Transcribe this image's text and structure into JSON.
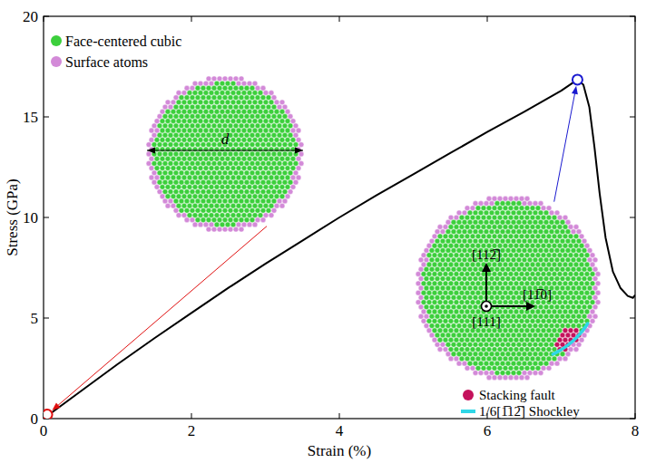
{
  "chart_data": {
    "type": "line",
    "xlabel": "Strain (%)",
    "ylabel": "Stress (GPa)",
    "x": [
      0,
      0.5,
      1,
      1.5,
      2,
      2.5,
      3,
      3.5,
      4,
      4.5,
      5,
      5.5,
      6,
      6.5,
      7,
      7.22,
      7.3,
      7.38,
      7.45,
      7.52,
      7.6,
      7.7,
      7.8,
      7.9,
      7.97,
      8
    ],
    "series": [
      {
        "color": "#000000",
        "line_style": "solid",
        "values": [
          0,
          1.35,
          2.7,
          4.0,
          5.25,
          6.5,
          7.7,
          8.85,
          10.0,
          11.1,
          12.15,
          13.2,
          14.25,
          15.25,
          16.3,
          16.85,
          16.6,
          15.5,
          13.5,
          11.2,
          9.0,
          7.3,
          6.5,
          6.1,
          6.0,
          6.15
        ]
      }
    ],
    "xlim": [
      0,
      8
    ],
    "ylim": [
      0,
      20
    ],
    "xticks": [
      0,
      2,
      4,
      6,
      8
    ],
    "yticks": [
      0,
      5,
      10,
      15,
      20
    ],
    "grid": false,
    "points": [
      {
        "x": 0.05,
        "y": 0.2,
        "color": "#e01010",
        "marker": "circle"
      },
      {
        "x": 7.22,
        "y": 16.85,
        "color": "#1a1ad0",
        "marker": "circle"
      }
    ],
    "insets": [
      {
        "items": [
          {
            "label": "Face-centered cubic",
            "color": "#3ccf3c"
          },
          {
            "label": "Surface atoms",
            "color": "#d38ad8"
          }
        ],
        "dimension": "d"
      },
      {
        "directions": [
          "[112̅]",
          "[11̅0]",
          "[111]"
        ],
        "items": [
          {
            "label": "Stacking fault",
            "color": "#c4125c"
          },
          {
            "label": "1/6[1̅12̅] Shockley",
            "color": "#2fd6e6"
          }
        ]
      }
    ]
  }
}
